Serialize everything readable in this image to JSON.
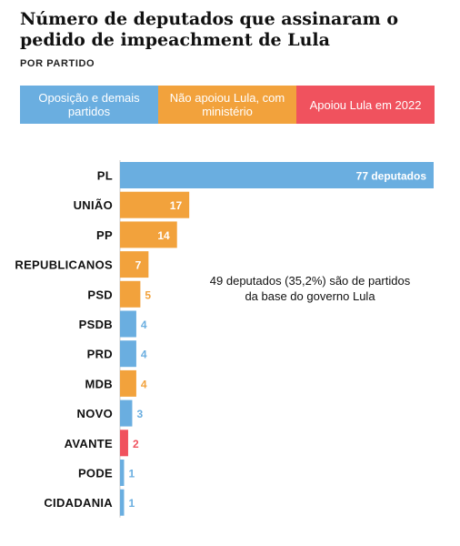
{
  "chart_data": {
    "type": "bar",
    "orientation": "horizontal",
    "title": "Número de deputados que assinaram o pedido de impeachment de Lula",
    "subtitle": "POR PARTIDO",
    "categories": [
      "PL",
      "UNIÃO",
      "PP",
      "REPUBLICANOS",
      "PSD",
      "PSDB",
      "PRD",
      "MDB",
      "NOVO",
      "AVANTE",
      "PODE",
      "CIDADANIA"
    ],
    "values": [
      77,
      17,
      14,
      7,
      5,
      4,
      4,
      4,
      3,
      2,
      1,
      1
    ],
    "value_labels": [
      "77 deputados",
      "17",
      "14",
      "7",
      "5",
      "4",
      "4",
      "4",
      "3",
      "2",
      "1",
      "1"
    ],
    "groups": [
      "oposicao",
      "ministerio",
      "ministerio",
      "ministerio",
      "ministerio",
      "oposicao",
      "oposicao",
      "ministerio",
      "oposicao",
      "apoiou",
      "oposicao",
      "oposicao"
    ],
    "legend": [
      {
        "key": "oposicao",
        "label": "Oposição e demais partidos",
        "color": "#6aaee0"
      },
      {
        "key": "ministerio",
        "label": "Não apoiou Lula, com ministério",
        "color": "#f2a23c"
      },
      {
        "key": "apoiou",
        "label": "Apoiou Lula em 2022",
        "color": "#f0525e"
      }
    ],
    "legend_placement": "top",
    "annotation": "49 deputados (35,2%) são de partidos da base do governo Lula",
    "xlim": [
      0,
      77
    ],
    "grid": false
  }
}
